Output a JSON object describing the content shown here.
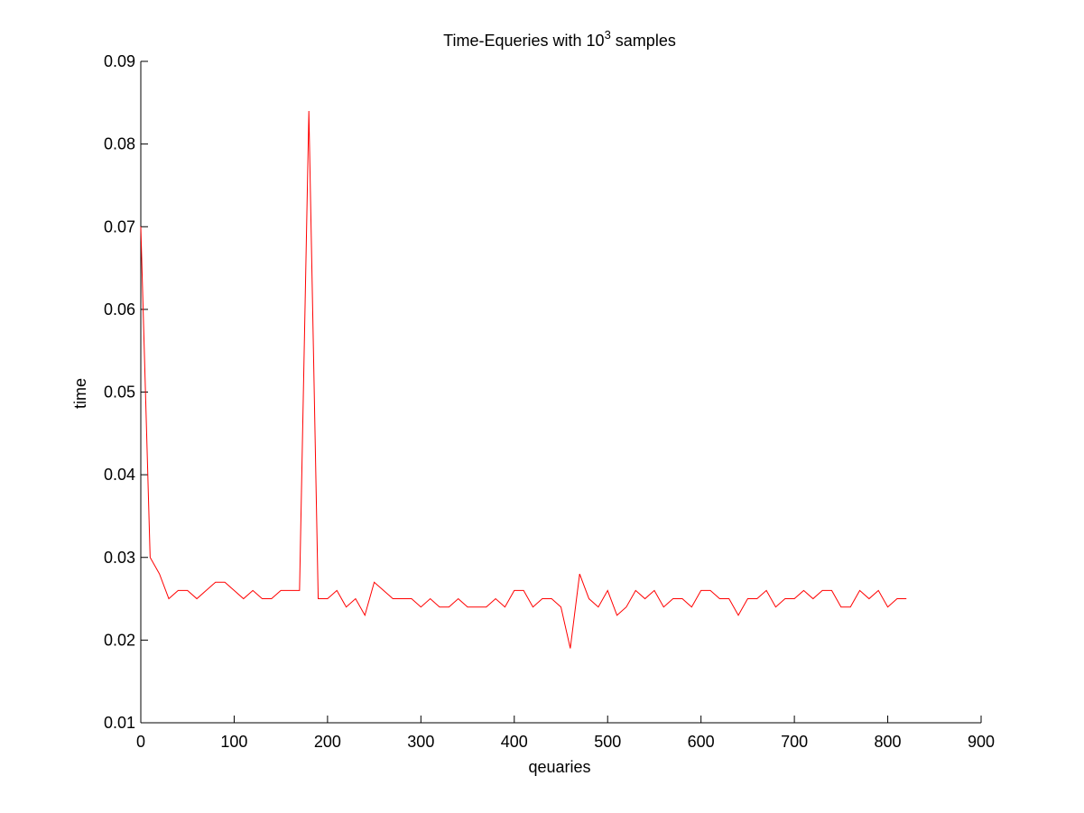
{
  "chart_data": {
    "type": "line",
    "title_main": "Time-Equeries with 10",
    "title_sup": "3",
    "title_end": " samples",
    "xlabel": "qeuaries",
    "ylabel": "time",
    "xlim": [
      0,
      900
    ],
    "ylim": [
      0.01,
      0.09
    ],
    "xticks": [
      0,
      100,
      200,
      300,
      400,
      500,
      600,
      700,
      800,
      900
    ],
    "xtick_labels": [
      "0",
      "100",
      "200",
      "300",
      "400",
      "500",
      "600",
      "700",
      "800",
      "900"
    ],
    "yticks": [
      0.01,
      0.02,
      0.03,
      0.04,
      0.05,
      0.06,
      0.07,
      0.08,
      0.09
    ],
    "ytick_labels": [
      "0.01",
      "0.02",
      "0.03",
      "0.04",
      "0.05",
      "0.06",
      "0.07",
      "0.08",
      "0.09"
    ],
    "grid": false,
    "series": [
      {
        "color": "#ff0000",
        "x": [
          0,
          10,
          20,
          30,
          40,
          50,
          60,
          70,
          80,
          90,
          100,
          110,
          120,
          130,
          140,
          150,
          160,
          170,
          180,
          190,
          200,
          210,
          220,
          230,
          240,
          250,
          260,
          270,
          280,
          290,
          300,
          310,
          320,
          330,
          340,
          350,
          360,
          370,
          380,
          390,
          400,
          410,
          420,
          430,
          440,
          450,
          460,
          470,
          480,
          490,
          500,
          510,
          520,
          530,
          540,
          550,
          560,
          570,
          580,
          590,
          600,
          610,
          620,
          630,
          640,
          650,
          660,
          670,
          680,
          690,
          700,
          710,
          720,
          730,
          740,
          750,
          760,
          770,
          780,
          790,
          800,
          810,
          820
        ],
        "y": [
          0.07,
          0.03,
          0.028,
          0.025,
          0.026,
          0.026,
          0.025,
          0.026,
          0.027,
          0.027,
          0.026,
          0.025,
          0.026,
          0.025,
          0.025,
          0.026,
          0.026,
          0.026,
          0.084,
          0.025,
          0.025,
          0.026,
          0.024,
          0.025,
          0.023,
          0.027,
          0.026,
          0.025,
          0.025,
          0.025,
          0.024,
          0.025,
          0.024,
          0.024,
          0.025,
          0.024,
          0.024,
          0.024,
          0.025,
          0.024,
          0.026,
          0.026,
          0.024,
          0.025,
          0.025,
          0.024,
          0.019,
          0.028,
          0.025,
          0.024,
          0.026,
          0.023,
          0.024,
          0.026,
          0.025,
          0.026,
          0.024,
          0.025,
          0.025,
          0.024,
          0.026,
          0.026,
          0.025,
          0.025,
          0.023,
          0.025,
          0.025,
          0.026,
          0.024,
          0.025,
          0.025,
          0.026,
          0.025,
          0.026,
          0.026,
          0.024,
          0.024,
          0.026,
          0.025,
          0.026,
          0.024,
          0.025,
          0.025
        ]
      }
    ]
  }
}
